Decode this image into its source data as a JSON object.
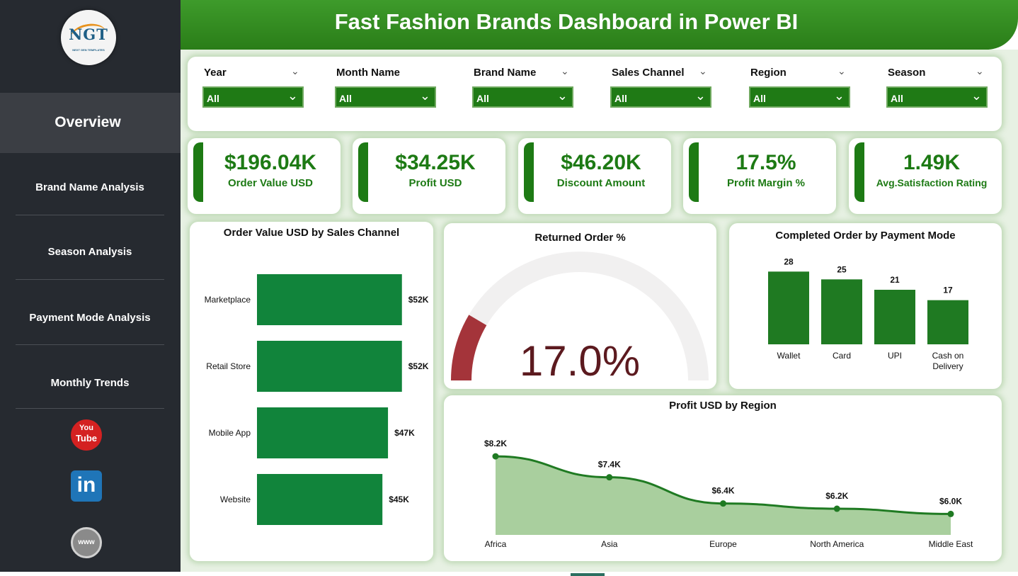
{
  "header": {
    "title": "Fast Fashion Brands Dashboard in Power BI"
  },
  "logo": {
    "text": "NGT",
    "subtext": "NEXT GEN TEMPLATES"
  },
  "sidebar": {
    "active": "Overview",
    "items": [
      {
        "label": "Brand Name Analysis"
      },
      {
        "label": "Season Analysis"
      },
      {
        "label": "Payment Mode Analysis"
      },
      {
        "label": "Monthly Trends"
      }
    ],
    "social": {
      "youtube_text": "You Tube",
      "youtube_text_top": "You",
      "youtube_text_bottom": "Tube",
      "linkedin_text": "in",
      "web_text": "www"
    }
  },
  "filters": [
    {
      "label": "Year",
      "value": "All"
    },
    {
      "label": "Month Name",
      "value": "All"
    },
    {
      "label": "Brand Name",
      "value": "All"
    },
    {
      "label": "Sales Channel",
      "value": "All"
    },
    {
      "label": "Region",
      "value": "All"
    },
    {
      "label": "Season",
      "value": "All"
    }
  ],
  "kpis": [
    {
      "value": "$196.04K",
      "label": "Order Value USD"
    },
    {
      "value": "$34.25K",
      "label": "Profit USD"
    },
    {
      "value": "$46.20K",
      "label": "Discount Amount"
    },
    {
      "value": "17.5%",
      "label": "Profit Margin %"
    },
    {
      "value": "1.49K",
      "label": "Avg.Satisfaction Rating"
    }
  ],
  "colors": {
    "accent": "#1d7a14",
    "bar_green": "#11843b",
    "area_fill": "#a9cf9e",
    "gauge_fill": "#a4343a",
    "gauge_track": "#f1f0f0",
    "gauge_text": "#5c1a1f"
  },
  "chart_data": [
    {
      "type": "bar",
      "orientation": "horizontal",
      "title": "Order Value USD by Sales Channel",
      "categories": [
        "Marketplace",
        "Retail Store",
        "Mobile App",
        "Website"
      ],
      "values": [
        52,
        52,
        47,
        45
      ],
      "data_labels": [
        "$52K",
        "$52K",
        "$47K",
        "$45K"
      ],
      "xlim": [
        0,
        80
      ],
      "grid": false
    },
    {
      "type": "gauge",
      "title": "Returned Order %",
      "value": 17.0,
      "display": "17.0%",
      "min": 0,
      "max": 100
    },
    {
      "type": "bar",
      "title": "Completed Order by Payment Mode",
      "categories": [
        "Wallet",
        "Card",
        "UPI",
        "Cash on Delivery"
      ],
      "values": [
        28,
        25,
        21,
        17
      ],
      "ylim": [
        0,
        30
      ],
      "grid": false
    },
    {
      "type": "area",
      "title": "Profit USD by Region",
      "categories": [
        "Africa",
        "Asia",
        "Europe",
        "North America",
        "Middle East"
      ],
      "values": [
        8.2,
        7.4,
        6.4,
        6.2,
        6.0
      ],
      "data_labels": [
        "$8.2K",
        "$7.4K",
        "$6.4K",
        "$6.2K",
        "$6.0K"
      ],
      "ylim": [
        5.2,
        8.5
      ],
      "grid": false
    }
  ]
}
